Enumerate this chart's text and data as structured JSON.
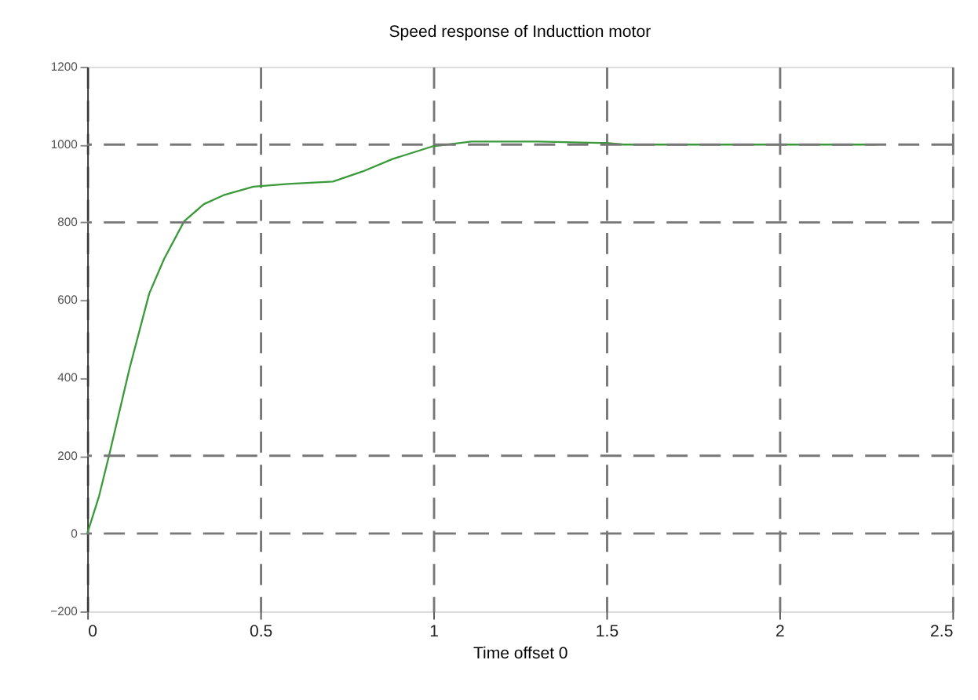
{
  "chart_data": {
    "type": "line",
    "title": "Speed response of Inducttion motor",
    "xlabel": "Time offset  0",
    "x": [
      0,
      0.034,
      0.065,
      0.122,
      0.179,
      0.222,
      0.28,
      0.337,
      0.394,
      0.48,
      0.58,
      0.71,
      0.796,
      0.882,
      0.996,
      1.11,
      1.3,
      1.5,
      1.55,
      1.8,
      2.0,
      2.28
    ],
    "series": [
      {
        "color": "#3a9a3a",
        "values": [
          0,
          96,
          208,
          424,
          617,
          706,
          803,
          847,
          870,
          892,
          899,
          905,
          931,
          963,
          995,
          1008,
          1008,
          1004,
          1000,
          1000,
          1000,
          1000
        ]
      }
    ],
    "xlim": [
      0,
      2.5
    ],
    "xticks": [
      0,
      0.5,
      1,
      1.5,
      2,
      2.5
    ],
    "ylim": [
      -200,
      1200
    ],
    "yticks": [
      -200,
      0,
      200,
      400,
      600,
      800,
      1000,
      1200
    ],
    "grid": "x",
    "ref_lines": [
      {
        "axis": "y",
        "value": 1000,
        "line_style": "dashed"
      },
      {
        "axis": "y",
        "value": 800,
        "line_style": "dashed"
      },
      {
        "axis": "y",
        "value": 200,
        "line_style": "dashed"
      },
      {
        "axis": "y",
        "value": 0,
        "line_style": "dashed"
      }
    ],
    "line_style": "solid",
    "marker": "none"
  }
}
